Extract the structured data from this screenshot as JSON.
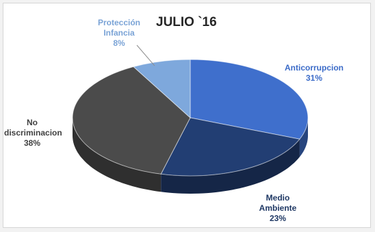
{
  "chart_data": {
    "type": "pie",
    "style": "3d",
    "title": "JULIO `16",
    "slices": [
      {
        "label": "Anticorrupcion",
        "value": 31,
        "value_label": "31%",
        "color": "#3f6fcc",
        "text_color": "#3b6bc8"
      },
      {
        "label": "Medio Ambiente",
        "value": 23,
        "value_label": "23%",
        "color": "#223e73",
        "text_color": "#1f3864"
      },
      {
        "label": "No discriminacion",
        "value": 38,
        "value_label": "38%",
        "color": "#4b4b4b",
        "text_color": "#404040"
      },
      {
        "label": "Protección Infancia",
        "value": 8,
        "value_label": "8%",
        "color": "#7ea8dc",
        "text_color": "#7aa3d6"
      }
    ],
    "start_angle_deg": 0,
    "legend": "none",
    "data_labels": "outside"
  },
  "labels": {
    "anticorrupcion": {
      "line1": "Anticorrupcion",
      "pct": "31%"
    },
    "medio": {
      "line1": "Medio",
      "line2": "Ambiente",
      "pct": "23%"
    },
    "nodis": {
      "line1": "No",
      "line2": "discriminacion",
      "pct": "38%"
    },
    "prot": {
      "line1": "Protección",
      "line2": "Infancia",
      "pct": "8%"
    }
  }
}
